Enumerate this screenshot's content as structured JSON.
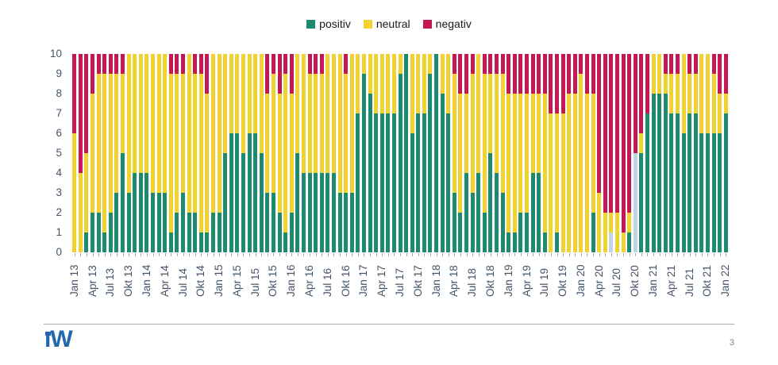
{
  "page": {
    "number": "3"
  },
  "logo": {
    "text": "iW"
  },
  "legend": [
    {
      "label": "positiv",
      "color": "#1B8A6F"
    },
    {
      "label": "neutral",
      "color": "#F0D330"
    },
    {
      "label": "negativ",
      "color": "#C51751"
    }
  ],
  "chart_data": {
    "type": "bar",
    "subtype": "stacked-column",
    "title": "",
    "xlabel": "",
    "ylabel": "",
    "ylim": [
      0,
      10
    ],
    "yticks": [
      "0",
      "1",
      "2",
      "3",
      "4",
      "5",
      "6",
      "7",
      "8",
      "9",
      "10"
    ],
    "grid": false,
    "legend_position": "top-center",
    "n_months": 109,
    "x_label_every": 3,
    "x_labels": [
      "Jan 13",
      "Apr 13",
      "Jul 13",
      "Okt 13",
      "Jan 14",
      "Apr 14",
      "Jul 14",
      "Okt 14",
      "Jan 15",
      "Apr 15",
      "Jul 15",
      "Okt 15",
      "Jan 16",
      "Apr 16",
      "Jul 16",
      "Okt 16",
      "Jan 17",
      "Apr 17",
      "Jul 17",
      "Okt 17",
      "Jan 18",
      "Apr 18",
      "Jul 18",
      "Okt 18",
      "Jan 19",
      "Apr 19",
      "Jul 19",
      "Okt 19",
      "Jan 20",
      "Apr 20",
      "Jul 20",
      "Okt 20",
      "Jan 21",
      "Apr 21",
      "Jul 21",
      "Okt 21",
      "Jan 22"
    ],
    "series": [
      {
        "name": "positiv",
        "color": "#1B8A6F",
        "values": [
          0,
          0,
          1,
          2,
          2,
          1,
          2,
          3,
          5,
          3,
          4,
          4,
          4,
          3,
          3,
          3,
          1,
          2,
          3,
          2,
          2,
          1,
          1,
          2,
          2,
          5,
          6,
          6,
          5,
          6,
          6,
          5,
          3,
          3,
          2,
          1,
          2,
          5,
          4,
          4,
          4,
          4,
          4,
          4,
          3,
          3,
          3,
          7,
          9,
          8,
          7,
          7,
          7,
          7,
          9,
          10,
          6,
          7,
          7,
          9,
          10,
          8,
          7,
          3,
          2,
          4,
          3,
          4,
          2,
          5,
          4,
          3,
          1,
          1,
          2,
          2,
          4,
          4,
          1,
          0,
          1,
          0,
          0,
          0,
          0,
          0,
          2,
          0,
          0,
          1,
          0,
          0,
          1,
          5,
          5,
          7,
          8,
          8,
          8,
          7,
          7,
          6,
          7,
          7,
          6,
          6,
          6,
          6,
          7
        ]
      },
      {
        "name": "neutral",
        "color": "#F0D330",
        "values": [
          6,
          4,
          4,
          6,
          7,
          8,
          7,
          6,
          4,
          7,
          6,
          6,
          6,
          7,
          7,
          7,
          8,
          7,
          6,
          8,
          7,
          8,
          7,
          8,
          8,
          5,
          4,
          4,
          5,
          4,
          4,
          5,
          5,
          6,
          6,
          8,
          6,
          5,
          6,
          5,
          5,
          5,
          6,
          6,
          7,
          6,
          7,
          3,
          1,
          2,
          3,
          3,
          3,
          3,
          1,
          0,
          4,
          3,
          3,
          1,
          0,
          2,
          3,
          6,
          6,
          4,
          6,
          6,
          7,
          4,
          5,
          6,
          7,
          7,
          6,
          6,
          4,
          4,
          7,
          7,
          6,
          7,
          8,
          8,
          9,
          8,
          6,
          3,
          2,
          1,
          2,
          1,
          1,
          0,
          1,
          0,
          2,
          2,
          1,
          2,
          2,
          4,
          2,
          2,
          4,
          4,
          3,
          2,
          1
        ]
      },
      {
        "name": "negativ",
        "color": "#C51751",
        "values": [
          4,
          6,
          5,
          2,
          1,
          1,
          1,
          1,
          1,
          0,
          0,
          0,
          0,
          0,
          0,
          0,
          1,
          1,
          1,
          0,
          1,
          1,
          2,
          0,
          0,
          0,
          0,
          0,
          0,
          0,
          0,
          0,
          2,
          1,
          2,
          1,
          2,
          0,
          0,
          1,
          1,
          1,
          0,
          0,
          0,
          1,
          0,
          0,
          0,
          0,
          0,
          0,
          0,
          0,
          0,
          0,
          0,
          0,
          0,
          0,
          0,
          0,
          0,
          1,
          2,
          2,
          1,
          0,
          1,
          1,
          1,
          1,
          2,
          2,
          2,
          2,
          2,
          2,
          2,
          3,
          3,
          3,
          2,
          2,
          1,
          2,
          2,
          7,
          8,
          8,
          8,
          9,
          8,
          5,
          4,
          3,
          0,
          0,
          1,
          1,
          1,
          0,
          1,
          1,
          0,
          0,
          1,
          2,
          2
        ]
      }
    ],
    "pale_positive_color": "#BFD3E6",
    "pale_positive": [
      {
        "month": "Jun 20",
        "index": 89
      },
      {
        "month": "Okt 20",
        "index": 93
      }
    ]
  }
}
